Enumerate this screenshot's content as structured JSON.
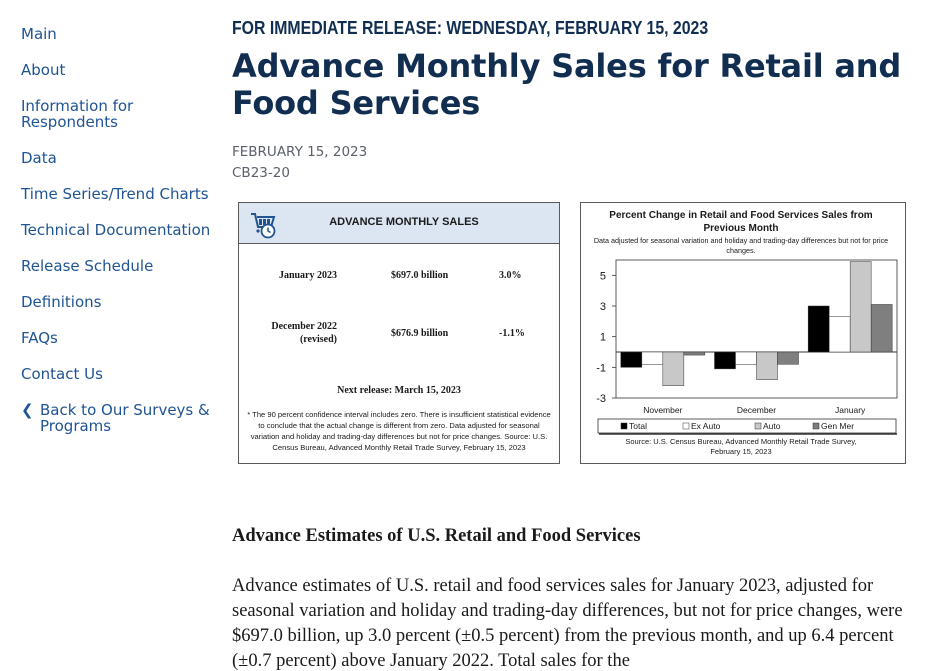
{
  "sidebar": {
    "items": [
      {
        "label": "Main"
      },
      {
        "label": "About"
      },
      {
        "label": "Information for Respondents"
      },
      {
        "label": "Data"
      },
      {
        "label": "Time Series/Trend Charts"
      },
      {
        "label": "Technical Documentation"
      },
      {
        "label": "Release Schedule"
      },
      {
        "label": "Definitions"
      },
      {
        "label": "FAQs"
      },
      {
        "label": "Contact Us"
      }
    ],
    "back_link": "Back to Our Surveys & Programs"
  },
  "release": {
    "line": "FOR IMMEDIATE RELEASE: WEDNESDAY, FEBRUARY 15, 2023",
    "title": "Advance Monthly Sales for Retail and Food Services",
    "date": "FEBRUARY 15, 2023",
    "code": "CB23-20"
  },
  "sales_card": {
    "heading": "ADVANCE MONTHLY SALES",
    "rows": [
      {
        "period": "January 2023",
        "value": "$697.0 billion",
        "change": "3.0%"
      },
      {
        "period": "December 2022",
        "period_note": "(revised)",
        "value": "$676.9 billion",
        "change": "-1.1%"
      }
    ],
    "next_release": "Next release: March 15, 2023",
    "notes": "* The 90 percent confidence interval includes zero. There is insufficient statistical evidence to conclude that the actual change is different from zero. Data adjusted for seasonal variation and holiday and trading-day differences but not for price changes. Source: U.S. Census Bureau, Advanced Monthly Retail Trade Survey, February 15, 2023"
  },
  "chart_data": {
    "type": "bar",
    "title": "Percent Change in Retail and Food Services Sales from Previous Month",
    "subtitle": "Data adjusted for seasonal variation and holiday and trading-day differences but not for price changes.",
    "categories": [
      "November",
      "December",
      "January"
    ],
    "series": [
      {
        "name": "Total",
        "values": [
          -1.0,
          -1.1,
          3.0
        ],
        "color": "#000000"
      },
      {
        "name": "Ex Auto",
        "values": [
          -0.8,
          -0.8,
          2.3
        ],
        "color": "#ffffff"
      },
      {
        "name": "Auto",
        "values": [
          -2.2,
          -1.8,
          5.9
        ],
        "color": "#c8c8c8"
      },
      {
        "name": "Gen Mer",
        "values": [
          -0.2,
          -0.8,
          3.1
        ],
        "color": "#7f7f7f"
      }
    ],
    "yticks": [
      5,
      3,
      1,
      -1,
      -3
    ],
    "ylim": [
      -3,
      6
    ],
    "legend_position": "bottom",
    "source": "Source: U.S. Census Bureau, Advanced Monthly Retail Trade Survey, February 15, 2023"
  },
  "article": {
    "heading": "Advance Estimates of U.S. Retail and Food Services",
    "body": "Advance estimates of U.S. retail and food services sales for January 2023, adjusted for seasonal variation and holiday and trading-day differences, but not for price changes, were $697.0 billion, up 3.0 percent (±0.5 percent) from the previous month, and up 6.4 percent (±0.7 percent) above January 2022. Total sales for the"
  },
  "icons": {
    "cart": "shopping-cart-clock-icon",
    "back": "chevron-left-icon"
  }
}
